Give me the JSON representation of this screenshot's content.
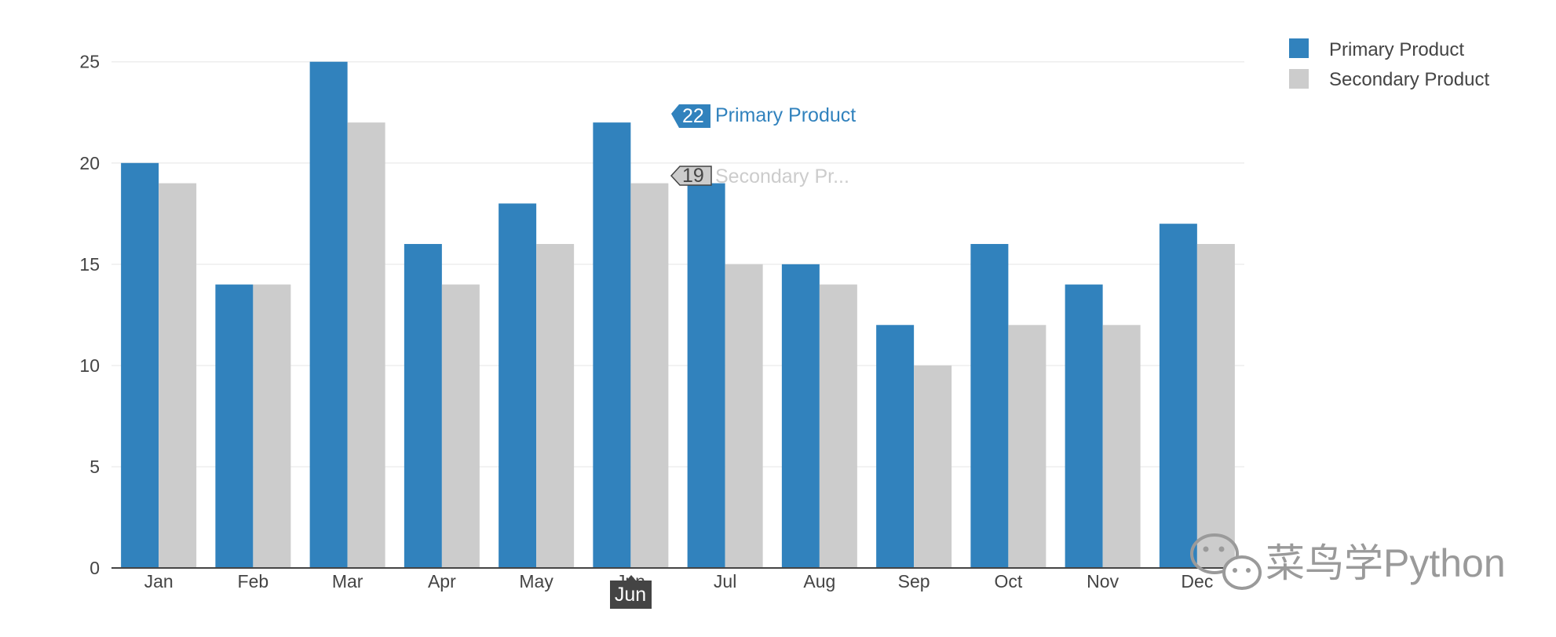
{
  "chart_data": {
    "type": "bar",
    "categories": [
      "Jan",
      "Feb",
      "Mar",
      "Apr",
      "May",
      "Jun",
      "Jul",
      "Aug",
      "Sep",
      "Oct",
      "Nov",
      "Dec"
    ],
    "series": [
      {
        "name": "Primary Product",
        "color": "#3182bd",
        "values": [
          20,
          14,
          25,
          16,
          18,
          22,
          19,
          15,
          12,
          16,
          14,
          17
        ]
      },
      {
        "name": "Secondary Product",
        "color": "#cccccc",
        "values": [
          19,
          14,
          22,
          14,
          16,
          19,
          15,
          14,
          10,
          12,
          12,
          16
        ]
      }
    ],
    "yticks": [
      0,
      5,
      10,
      15,
      20,
      25
    ],
    "ylim": [
      0,
      26.5
    ],
    "grid": true,
    "legend": "top-right"
  },
  "hover": {
    "category": "Jun",
    "primary_value": "22",
    "primary_label": "Primary Product",
    "secondary_value": "19",
    "secondary_label": "Secondary Pr..."
  },
  "watermark": {
    "text": "菜鸟学Python",
    "icon": "wechat-icon"
  }
}
